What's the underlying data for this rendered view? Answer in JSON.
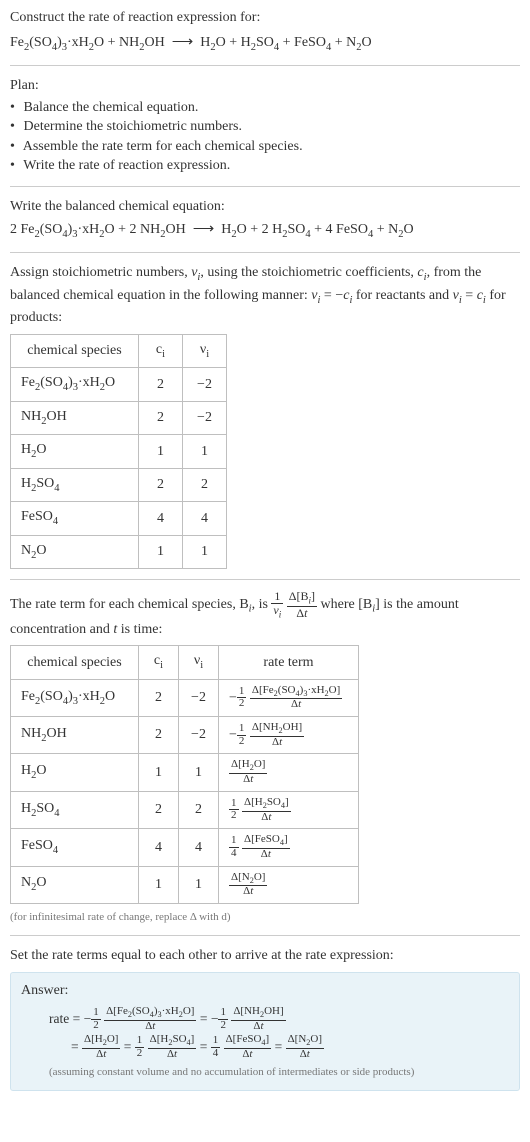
{
  "intro_title": "Construct the rate of reaction expression for:",
  "unbalanced_eq_html": "Fe<sub>2</sub>(SO<sub>4</sub>)<sub>3</sub>·xH<sub>2</sub>O + NH<sub>2</sub>OH&nbsp;&nbsp;<span class='arrow'>⟶</span>&nbsp;&nbsp;H<sub>2</sub>O + H<sub>2</sub>SO<sub>4</sub> + FeSO<sub>4</sub> + N<sub>2</sub>O",
  "plan_title": "Plan:",
  "plan_items": [
    "Balance the chemical equation.",
    "Determine the stoichiometric numbers.",
    "Assemble the rate term for each chemical species.",
    "Write the rate of reaction expression."
  ],
  "balanced_title": "Write the balanced chemical equation:",
  "balanced_eq_html": "2 Fe<sub>2</sub>(SO<sub>4</sub>)<sub>3</sub>·xH<sub>2</sub>O + 2 NH<sub>2</sub>OH&nbsp;&nbsp;<span class='arrow'>⟶</span>&nbsp;&nbsp;H<sub>2</sub>O + 2 H<sub>2</sub>SO<sub>4</sub> + 4 FeSO<sub>4</sub> + N<sub>2</sub>O",
  "stoich_intro_html": "Assign stoichiometric numbers, <span class='ital'>ν<sub>i</sub></span>, using the stoichiometric coefficients, <span class='ital'>c<sub>i</sub></span>, from the balanced chemical equation in the following manner: <span class='ital'>ν<sub>i</sub></span> = −<span class='ital'>c<sub>i</sub></span> for reactants and <span class='ital'>ν<sub>i</sub></span> = <span class='ital'>c<sub>i</sub></span> for products:",
  "table1": {
    "headers": [
      "chemical species",
      "c<sub>i</sub>",
      "ν<sub>i</sub>"
    ],
    "rows": [
      [
        "Fe<sub>2</sub>(SO<sub>4</sub>)<sub>3</sub>·xH<sub>2</sub>O",
        "2",
        "−2"
      ],
      [
        "NH<sub>2</sub>OH",
        "2",
        "−2"
      ],
      [
        "H<sub>2</sub>O",
        "1",
        "1"
      ],
      [
        "H<sub>2</sub>SO<sub>4</sub>",
        "2",
        "2"
      ],
      [
        "FeSO<sub>4</sub>",
        "4",
        "4"
      ],
      [
        "N<sub>2</sub>O",
        "1",
        "1"
      ]
    ],
    "col_widths": [
      "128px",
      "44px",
      "44px"
    ]
  },
  "rate_term_intro_html": "The rate term for each chemical species, B<sub><span class='ital'>i</sub></span>, is <span class='inlineblk'><span class='frac'><span class='num'>1</span><span class='den'><span class='ital'>ν<sub>i</sub></span></span></span></span> <span class='inlineblk'><span class='frac'><span class='num'>Δ[B<sub><span class='ital'>i</span></sub>]</span><span class='den'>Δ<span class='ital'>t</span></span></span></span> where [B<sub><span class='ital'>i</span></sub>] is the amount concentration and <span class='ital'>t</span> is time:",
  "table2": {
    "headers": [
      "chemical species",
      "c<sub>i</sub>",
      "ν<sub>i</sub>",
      "rate term"
    ],
    "rows": [
      [
        "Fe<sub>2</sub>(SO<sub>4</sub>)<sub>3</sub>·xH<sub>2</sub>O",
        "2",
        "−2",
        "−<span class='frac frac-sm'><span class='num'>1</span><span class='den'>2</span></span> <span class='frac frac-sm'><span class='num'>Δ[Fe<sub>2</sub>(SO<sub>4</sub>)<sub>3</sub>·xH<sub>2</sub>O]</span><span class='den'>Δ<span class='ital'>t</span></span></span>"
      ],
      [
        "NH<sub>2</sub>OH",
        "2",
        "−2",
        "−<span class='frac frac-sm'><span class='num'>1</span><span class='den'>2</span></span> <span class='frac frac-sm'><span class='num'>Δ[NH<sub>2</sub>OH]</span><span class='den'>Δ<span class='ital'>t</span></span></span>"
      ],
      [
        "H<sub>2</sub>O",
        "1",
        "1",
        "<span class='frac frac-sm'><span class='num'>Δ[H<sub>2</sub>O]</span><span class='den'>Δ<span class='ital'>t</span></span></span>"
      ],
      [
        "H<sub>2</sub>SO<sub>4</sub>",
        "2",
        "2",
        "<span class='frac frac-sm'><span class='num'>1</span><span class='den'>2</span></span> <span class='frac frac-sm'><span class='num'>Δ[H<sub>2</sub>SO<sub>4</sub>]</span><span class='den'>Δ<span class='ital'>t</span></span></span>"
      ],
      [
        "FeSO<sub>4</sub>",
        "4",
        "4",
        "<span class='frac frac-sm'><span class='num'>1</span><span class='den'>4</span></span> <span class='frac frac-sm'><span class='num'>Δ[FeSO<sub>4</sub>]</span><span class='den'>Δ<span class='ital'>t</span></span></span>"
      ],
      [
        "N<sub>2</sub>O",
        "1",
        "1",
        "<span class='frac frac-sm'><span class='num'>Δ[N<sub>2</sub>O]</span><span class='den'>Δ<span class='ital'>t</span></span></span>"
      ]
    ],
    "col_widths": [
      "128px",
      "40px",
      "40px",
      "140px"
    ]
  },
  "table2_note": "(for infinitesimal rate of change, replace Δ with d)",
  "final_intro": "Set the rate terms equal to each other to arrive at the rate expression:",
  "answer_label": "Answer:",
  "answer_line1_html": "rate = −<span class='frac frac-sm'><span class='num'>1</span><span class='den'>2</span></span> <span class='frac frac-sm'><span class='num'>Δ[Fe<sub>2</sub>(SO<sub>4</sub>)<sub>3</sub>·xH<sub>2</sub>O]</span><span class='den'>Δ<span class='ital'>t</span></span></span> = −<span class='frac frac-sm'><span class='num'>1</span><span class='den'>2</span></span> <span class='frac frac-sm'><span class='num'>Δ[NH<sub>2</sub>OH]</span><span class='den'>Δ<span class='ital'>t</span></span></span>",
  "answer_line2_html": "= <span class='frac frac-sm'><span class='num'>Δ[H<sub>2</sub>O]</span><span class='den'>Δ<span class='ital'>t</span></span></span> = <span class='frac frac-sm'><span class='num'>1</span><span class='den'>2</span></span> <span class='frac frac-sm'><span class='num'>Δ[H<sub>2</sub>SO<sub>4</sub>]</span><span class='den'>Δ<span class='ital'>t</span></span></span> = <span class='frac frac-sm'><span class='num'>1</span><span class='den'>4</span></span> <span class='frac frac-sm'><span class='num'>Δ[FeSO<sub>4</sub>]</span><span class='den'>Δ<span class='ital'>t</span></span></span> = <span class='frac frac-sm'><span class='num'>Δ[N<sub>2</sub>O]</span><span class='den'>Δ<span class='ital'>t</span></span></span>",
  "answer_note": "(assuming constant volume and no accumulation of intermediates or side products)",
  "colors": {
    "text": "#333333",
    "separator": "#cccccc",
    "table_border": "#bfbfbf",
    "note": "#777777",
    "answer_bg": "#e9f3f8",
    "answer_border": "#cfe3ee"
  }
}
